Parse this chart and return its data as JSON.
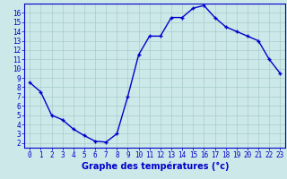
{
  "x": [
    0,
    1,
    2,
    3,
    4,
    5,
    6,
    7,
    8,
    9,
    10,
    11,
    12,
    13,
    14,
    15,
    16,
    17,
    18,
    19,
    20,
    21,
    22,
    23
  ],
  "y": [
    8.5,
    7.5,
    5.0,
    4.5,
    3.5,
    2.8,
    2.2,
    2.1,
    3.0,
    7.0,
    11.5,
    13.5,
    13.5,
    15.5,
    15.5,
    16.5,
    16.8,
    15.5,
    14.5,
    14.0,
    13.5,
    13.0,
    11.0,
    9.5
  ],
  "line_color": "#0000cc",
  "marker": "+",
  "bg_color": "#cce8e8",
  "plot_bg": "#cce8e8",
  "grid_color": "#aacccc",
  "xlabel": "Graphe des températures (°c)",
  "xlabel_color": "#0000cc",
  "xlim": [
    -0.5,
    23.5
  ],
  "ylim": [
    1.5,
    17.0
  ],
  "yticks": [
    2,
    3,
    4,
    5,
    6,
    7,
    8,
    9,
    10,
    11,
    12,
    13,
    14,
    15,
    16
  ],
  "xticks": [
    0,
    1,
    2,
    3,
    4,
    5,
    6,
    7,
    8,
    9,
    10,
    11,
    12,
    13,
    14,
    15,
    16,
    17,
    18,
    19,
    20,
    21,
    22,
    23
  ],
  "tick_label_color": "#0000cc",
  "spine_color": "#0000cc",
  "markersize": 3,
  "linewidth": 1.0
}
